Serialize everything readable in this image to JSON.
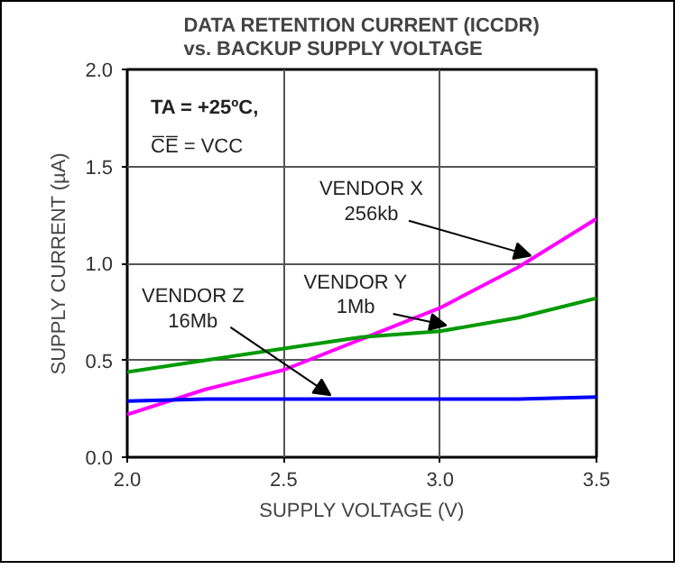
{
  "chart_data": {
    "type": "line",
    "title": "DATA RETENTION CURRENT (ICCDR)\nvs. BACKUP SUPPLY VOLTAGE",
    "xlabel": "SUPPLY VOLTAGE (V)",
    "ylabel": "SUPPLY CURRENT (µA)",
    "x": [
      2.0,
      2.25,
      2.5,
      2.75,
      3.0,
      3.25,
      3.5
    ],
    "series": [
      {
        "color": "#ff00ff",
        "values": [
          0.22,
          0.35,
          0.45,
          0.61,
          0.77,
          0.98,
          1.23
        ]
      },
      {
        "color": "#009900",
        "values": [
          0.44,
          0.5,
          0.56,
          0.62,
          0.65,
          0.72,
          0.82
        ]
      },
      {
        "color": "#0000ff",
        "values": [
          0.29,
          0.3,
          0.3,
          0.3,
          0.3,
          0.3,
          0.31
        ]
      }
    ],
    "annotations": [
      "TA = +25ºC,",
      "C̅E̅ = VCC",
      {
        "text": "VENDOR X\n256kb",
        "x": 3.29,
        "y": 1.02
      },
      {
        "text": "VENDOR Y\n1Mb",
        "x": 3.02,
        "y": 0.66
      },
      {
        "text": "VENDOR Z\n16Mb",
        "x": 2.65,
        "y": 0.3
      }
    ],
    "xlim": [
      2.0,
      3.5
    ],
    "ylim": [
      0,
      2.0
    ],
    "xticks": [
      {
        "value": 2.0,
        "label": "2.0"
      },
      2.5,
      {
        "value": 3.0,
        "label": "3.0"
      },
      3.5
    ],
    "yticks": [
      {
        "value": 0,
        "label": "0.0"
      },
      0.5,
      {
        "value": 1.0,
        "label": "1.0"
      },
      1.5,
      {
        "value": 2.0,
        "label": "2.0"
      }
    ],
    "grid": true,
    "marker": "none",
    "line_style": "solid"
  }
}
